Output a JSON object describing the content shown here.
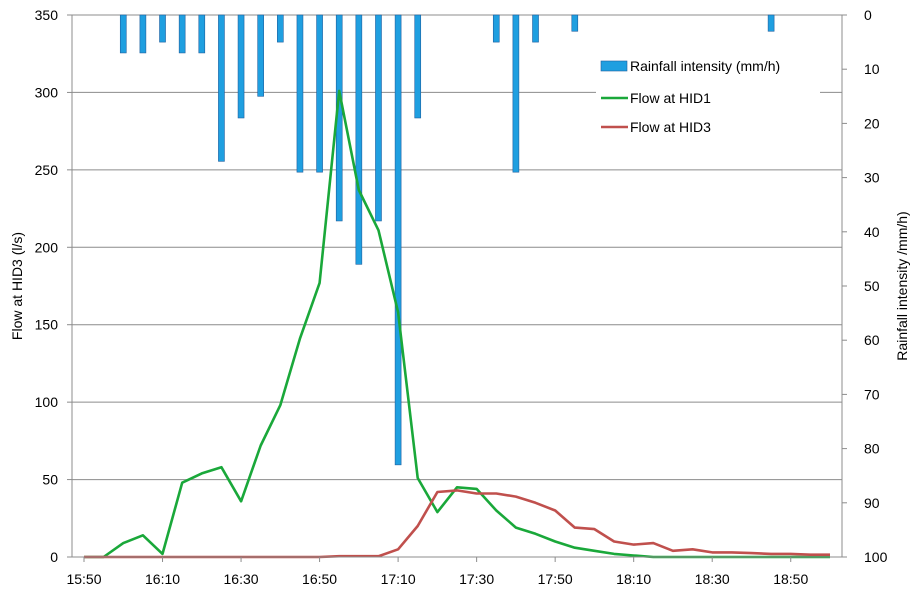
{
  "chart_data": {
    "type": "bar+line",
    "x_axis": {
      "tick_labels": [
        "15:50",
        "16:10",
        "16:30",
        "16:50",
        "17:10",
        "17:30",
        "17:50",
        "18:10",
        "18:30",
        "18:50"
      ],
      "range_minutes": [
        "15:50",
        "19:00"
      ]
    },
    "y_left": {
      "label": "Flow at HID3 (l/s)",
      "ticks": [
        0,
        50,
        100,
        150,
        200,
        250,
        300,
        350
      ],
      "range": [
        0,
        350
      ]
    },
    "y_right": {
      "label": "Rainfall intensity /mm/h)",
      "ticks": [
        0,
        10,
        20,
        30,
        40,
        50,
        60,
        70,
        80,
        90,
        100
      ],
      "range": [
        0,
        100
      ],
      "inverted": true
    },
    "grid": "horizontal",
    "legend_position": "top-right",
    "bar_color": "#1f9fe0",
    "bar_edge_color": "#1f5f9f",
    "series": [
      {
        "name": "Rainfall intensity (mm/h)",
        "kind": "bar",
        "axis": "right",
        "x": [
          "16:00",
          "16:05",
          "16:10",
          "16:15",
          "16:20",
          "16:25",
          "16:30",
          "16:35",
          "16:40",
          "16:45",
          "16:50",
          "16:55",
          "17:00",
          "17:05",
          "17:10",
          "17:15",
          "17:35",
          "17:40",
          "17:45",
          "17:55",
          "18:45"
        ],
        "values": [
          7,
          7,
          5,
          7,
          7,
          27,
          19,
          15,
          5,
          29,
          29,
          38,
          46,
          38,
          83,
          19,
          5,
          29,
          5,
          3,
          3
        ]
      },
      {
        "name": "Flow at HID1",
        "kind": "line",
        "axis": "left",
        "color": "#1aa83a",
        "x": [
          "15:50",
          "15:55",
          "16:00",
          "16:05",
          "16:10",
          "16:15",
          "16:20",
          "16:25",
          "16:30",
          "16:35",
          "16:40",
          "16:45",
          "16:50",
          "16:55",
          "17:00",
          "17:05",
          "17:10",
          "17:15",
          "17:20",
          "17:25",
          "17:30",
          "17:35",
          "17:40",
          "17:45",
          "17:50",
          "17:55",
          "18:00",
          "18:05",
          "18:10",
          "18:15",
          "18:20",
          "18:25",
          "18:30",
          "18:35",
          "18:40",
          "18:45",
          "18:50",
          "18:55",
          "19:00"
        ],
        "values": [
          0,
          0,
          9,
          14,
          2,
          48,
          54,
          58,
          36,
          72,
          98,
          141,
          177,
          301,
          237,
          211,
          158,
          51,
          29,
          45,
          44,
          30,
          19,
          15,
          10,
          6,
          4,
          2,
          1,
          0,
          0,
          0,
          0,
          0,
          0,
          0,
          0,
          0,
          0
        ]
      },
      {
        "name": "Flow at HID3",
        "kind": "line",
        "axis": "left",
        "color": "#c0504d",
        "x": [
          "15:50",
          "15:55",
          "16:00",
          "16:05",
          "16:10",
          "16:15",
          "16:20",
          "16:25",
          "16:30",
          "16:35",
          "16:40",
          "16:45",
          "16:50",
          "16:55",
          "17:00",
          "17:05",
          "17:10",
          "17:15",
          "17:20",
          "17:25",
          "17:30",
          "17:35",
          "17:40",
          "17:45",
          "17:50",
          "17:55",
          "18:00",
          "18:05",
          "18:10",
          "18:15",
          "18:20",
          "18:25",
          "18:30",
          "18:35",
          "18:40",
          "18:45",
          "18:50",
          "18:55",
          "19:00"
        ],
        "values": [
          0,
          0,
          0,
          0,
          0,
          0,
          0,
          0,
          0,
          0,
          0,
          0,
          0,
          0.5,
          0.5,
          0.5,
          5,
          20,
          42,
          43,
          41,
          41,
          39,
          35,
          30,
          19,
          18,
          10,
          8,
          9,
          4,
          5,
          3,
          3,
          2.5,
          2,
          2,
          1.5,
          1.5
        ]
      }
    ]
  }
}
